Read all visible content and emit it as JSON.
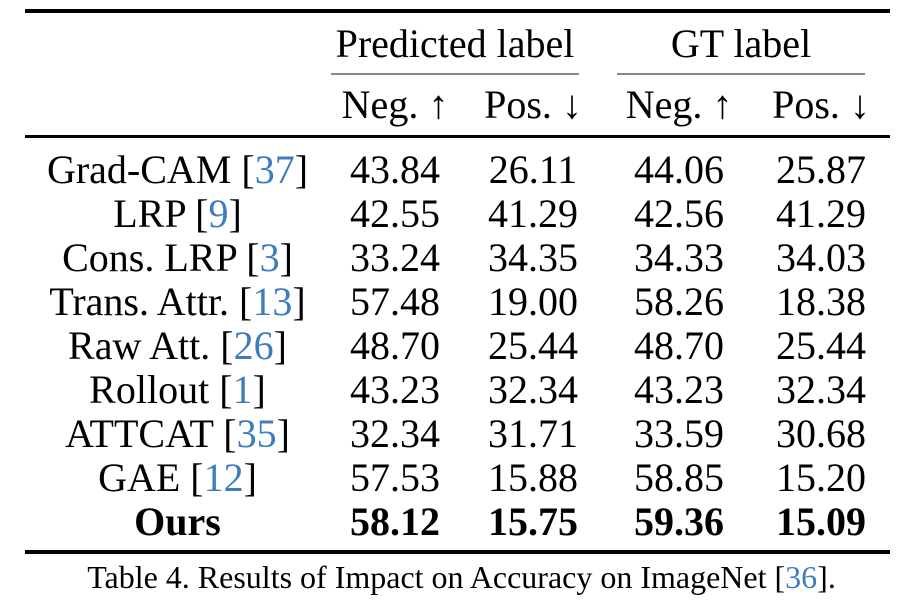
{
  "colors": {
    "cite_blue": "#3D7DBD",
    "group_rule_gray": "#888888",
    "text_black": "#000000"
  },
  "table": {
    "groups": [
      {
        "label": "Predicted label"
      },
      {
        "label": "GT label"
      }
    ],
    "sub_headers": [
      "Neg. ↑",
      "Pos. ↓",
      "Neg. ↑",
      "Pos. ↓"
    ],
    "rows": [
      {
        "method": "Grad-CAM",
        "cite_pre": " [",
        "cite": "37",
        "cite_post": "]",
        "pred_neg": "43.84",
        "pred_pos": "26.11",
        "gt_neg": "44.06",
        "gt_pos": "25.87"
      },
      {
        "method": "LRP",
        "cite_pre": " [",
        "cite": "9",
        "cite_post": "]",
        "pred_neg": "42.55",
        "pred_pos": "41.29",
        "gt_neg": "42.56",
        "gt_pos": "41.29"
      },
      {
        "method": "Cons. LRP",
        "cite_pre": " [",
        "cite": "3",
        "cite_post": "]",
        "pred_neg": "33.24",
        "pred_pos": "34.35",
        "gt_neg": "34.33",
        "gt_pos": "34.03"
      },
      {
        "method": "Trans. Attr.",
        "cite_pre": " [",
        "cite": "13",
        "cite_post": "]",
        "pred_neg": "57.48",
        "pred_pos": "19.00",
        "gt_neg": "58.26",
        "gt_pos": "18.38"
      },
      {
        "method": "Raw Att.",
        "cite_pre": " [",
        "cite": "26",
        "cite_post": "]",
        "pred_neg": "48.70",
        "pred_pos": "25.44",
        "gt_neg": "48.70",
        "gt_pos": "25.44"
      },
      {
        "method": "Rollout",
        "cite_pre": " [",
        "cite": "1",
        "cite_post": "]",
        "pred_neg": "43.23",
        "pred_pos": "32.34",
        "gt_neg": "43.23",
        "gt_pos": "32.34"
      },
      {
        "method": "ATTCAT",
        "cite_pre": " [",
        "cite": "35",
        "cite_post": "]",
        "pred_neg": "32.34",
        "pred_pos": "31.71",
        "gt_neg": "33.59",
        "gt_pos": "30.68"
      },
      {
        "method": "GAE",
        "cite_pre": " [",
        "cite": "12",
        "cite_post": "]",
        "pred_neg": "57.53",
        "pred_pos": "15.88",
        "gt_neg": "58.85",
        "gt_pos": "15.20"
      },
      {
        "method": "Ours",
        "cite_pre": "",
        "cite": "",
        "cite_post": "",
        "pred_neg": "58.12",
        "pred_pos": "15.75",
        "gt_neg": "59.36",
        "gt_pos": "15.09"
      }
    ]
  },
  "caption": {
    "pre": "Table 4. Results of Impact on Accuracy on ImageNet [",
    "cite": "36",
    "post": "]."
  }
}
